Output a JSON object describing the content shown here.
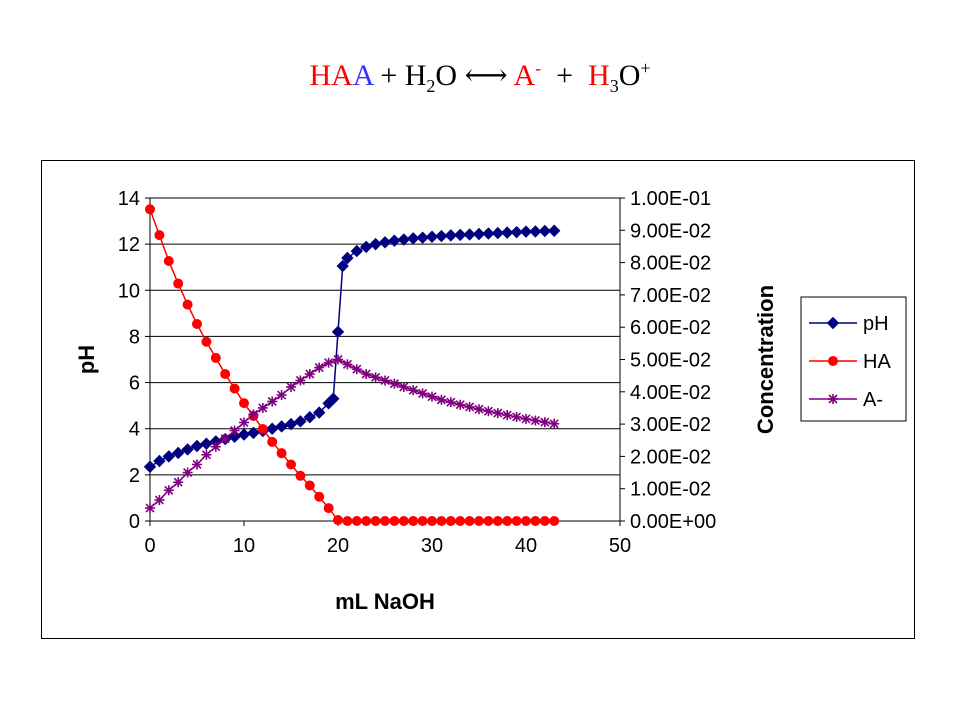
{
  "equation": {
    "parts": [
      {
        "text": "HA",
        "color": "#ff0000"
      },
      {
        "text": "A",
        "color": "#3333ff"
      },
      {
        "text": " + H",
        "color": "#000000"
      },
      {
        "text": "2",
        "color": "#000000",
        "sub": true
      },
      {
        "text": "O ",
        "color": "#000000"
      },
      {
        "text": "⟷",
        "color": "#000000"
      },
      {
        "text": " ",
        "color": "#000000"
      },
      {
        "text": "A",
        "color": "#ff0000"
      },
      {
        "text": "-",
        "color": "#ff0000",
        "sup": true
      },
      {
        "text": "  +  ",
        "color": "#000000"
      },
      {
        "text": "H",
        "color": "#ff0000"
      },
      {
        "text": "3",
        "color": "#000000",
        "sub": true
      },
      {
        "text": "O",
        "color": "#000000"
      },
      {
        "text": "+",
        "color": "#000000",
        "sup": true
      }
    ]
  },
  "chart_data": {
    "type": "line",
    "xlabel": "mL NaOH",
    "ylabel": "pH",
    "y2label": "Concentration",
    "xlim": [
      0,
      50
    ],
    "ylim": [
      0,
      14
    ],
    "y2lim": [
      0,
      0.1
    ],
    "x_ticks": [
      "0",
      "10",
      "20",
      "30",
      "40",
      "50"
    ],
    "y_ticks": [
      "0",
      "2",
      "4",
      "6",
      "8",
      "10",
      "12",
      "14"
    ],
    "y2_ticks": [
      "0.00E+00",
      "1.00E-02",
      "2.00E-02",
      "3.00E-02",
      "4.00E-02",
      "5.00E-02",
      "6.00E-02",
      "7.00E-02",
      "8.00E-02",
      "9.00E-02",
      "1.00E-01"
    ],
    "grid": "horizontal",
    "legend": "right",
    "series": [
      {
        "name": "pH",
        "axis": "y",
        "color": "#000080",
        "marker": "diamond",
        "x": [
          0,
          1,
          2,
          3,
          4,
          5,
          6,
          7,
          8,
          9,
          10,
          11,
          12,
          13,
          14,
          15,
          16,
          17,
          18,
          19,
          19.5,
          20,
          20.5,
          21,
          22,
          23,
          24,
          25,
          26,
          27,
          28,
          29,
          30,
          31,
          32,
          33,
          34,
          35,
          36,
          37,
          38,
          39,
          40,
          41,
          42,
          43
        ],
        "y": [
          2.35,
          2.6,
          2.8,
          2.95,
          3.1,
          3.25,
          3.35,
          3.45,
          3.55,
          3.65,
          3.75,
          3.82,
          3.9,
          4.0,
          4.1,
          4.2,
          4.32,
          4.5,
          4.7,
          5.1,
          5.3,
          8.2,
          11.05,
          11.4,
          11.7,
          11.88,
          12.0,
          12.08,
          12.15,
          12.2,
          12.25,
          12.28,
          12.32,
          12.35,
          12.38,
          12.4,
          12.42,
          12.44,
          12.46,
          12.48,
          12.5,
          12.52,
          12.54,
          12.55,
          12.57,
          12.58
        ]
      },
      {
        "name": "HA",
        "axis": "y2",
        "color": "#ff0000",
        "marker": "circle",
        "x": [
          0,
          1,
          2,
          3,
          4,
          5,
          6,
          7,
          8,
          9,
          10,
          11,
          12,
          13,
          14,
          15,
          16,
          17,
          18,
          19,
          20,
          21,
          22,
          23,
          24,
          25,
          26,
          27,
          28,
          29,
          30,
          31,
          32,
          33,
          34,
          35,
          36,
          37,
          38,
          39,
          40,
          41,
          42,
          43
        ],
        "y": [
          0.0965,
          0.0885,
          0.0805,
          0.0735,
          0.067,
          0.061,
          0.0555,
          0.0505,
          0.0455,
          0.041,
          0.0365,
          0.0325,
          0.0285,
          0.0245,
          0.021,
          0.0175,
          0.014,
          0.011,
          0.0075,
          0.004,
          0.0003,
          0,
          0,
          0,
          0,
          0,
          0,
          0,
          0,
          0,
          0,
          0,
          0,
          0,
          0,
          0,
          0,
          0,
          0,
          0,
          0,
          0,
          0,
          0
        ]
      },
      {
        "name": "A-",
        "axis": "y2",
        "color": "#800080",
        "marker": "asterisk",
        "x": [
          0,
          1,
          2,
          3,
          4,
          5,
          6,
          7,
          8,
          9,
          10,
          11,
          12,
          13,
          14,
          15,
          16,
          17,
          18,
          19,
          20,
          21,
          22,
          23,
          24,
          25,
          26,
          27,
          28,
          29,
          30,
          31,
          32,
          33,
          34,
          35,
          36,
          37,
          38,
          39,
          40,
          41,
          42,
          43
        ],
        "y": [
          0.004,
          0.0065,
          0.0095,
          0.012,
          0.015,
          0.0175,
          0.0205,
          0.023,
          0.0255,
          0.028,
          0.0305,
          0.033,
          0.035,
          0.037,
          0.039,
          0.0415,
          0.0435,
          0.0455,
          0.0475,
          0.049,
          0.05,
          0.0485,
          0.047,
          0.0455,
          0.0445,
          0.0435,
          0.0425,
          0.0415,
          0.0405,
          0.0395,
          0.0385,
          0.0375,
          0.0368,
          0.036,
          0.0353,
          0.0346,
          0.034,
          0.0334,
          0.0328,
          0.0322,
          0.0316,
          0.0311,
          0.0306,
          0.0301
        ]
      }
    ]
  }
}
